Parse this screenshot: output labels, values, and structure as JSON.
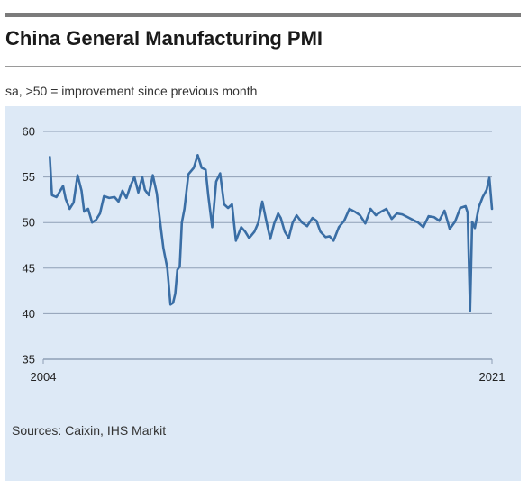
{
  "header": {
    "title": "China General Manufacturing PMI",
    "subtitle": "sa, >50 = improvement since previous month"
  },
  "footer": {
    "source": "Sources: Caixin, IHS Markit"
  },
  "colors": {
    "line": "#3a6ea5",
    "panel": "#dde9f6",
    "grid": "#8f9fb5",
    "rule": "#7b7b7b"
  },
  "chart_data": {
    "type": "line",
    "title": "China General Manufacturing PMI",
    "subtitle": "sa, >50 = improvement since previous month",
    "xlim": [
      2004,
      2021
    ],
    "ylim": [
      35,
      60
    ],
    "x_tick_labels": [
      {
        "value": 2004,
        "label": "2004"
      },
      {
        "value": 2021,
        "label": "2021"
      }
    ],
    "y_ticks": [
      60,
      55,
      50,
      45,
      40,
      35
    ],
    "grid": "horizontal",
    "series": [
      {
        "x": [
          2004.25,
          2004.33,
          2004.5,
          2004.75,
          2004.85,
          2005.0,
          2005.15,
          2005.3,
          2005.45,
          2005.55,
          2005.7,
          2005.85,
          2006.0,
          2006.15,
          2006.3,
          2006.5,
          2006.7,
          2006.85,
          2007.0,
          2007.15,
          2007.3,
          2007.45,
          2007.6,
          2007.75,
          2007.85,
          2008.0,
          2008.15,
          2008.3,
          2008.45,
          2008.55,
          2008.7,
          2008.82,
          2008.92,
          2009.0,
          2009.08,
          2009.17,
          2009.25,
          2009.35,
          2009.5,
          2009.7,
          2009.85,
          2010.0,
          2010.15,
          2010.25,
          2010.4,
          2010.55,
          2010.7,
          2010.85,
          2011.0,
          2011.15,
          2011.3,
          2011.5,
          2011.65,
          2011.8,
          2012.0,
          2012.15,
          2012.3,
          2012.45,
          2012.6,
          2012.75,
          2012.9,
          2013.0,
          2013.15,
          2013.3,
          2013.45,
          2013.6,
          2013.8,
          2014.0,
          2014.2,
          2014.35,
          2014.5,
          2014.7,
          2014.85,
          2015.0,
          2015.2,
          2015.4,
          2015.6,
          2015.8,
          2016.0,
          2016.2,
          2016.4,
          2016.6,
          2016.8,
          2017.0,
          2017.2,
          2017.4,
          2017.6,
          2017.8,
          2018.0,
          2018.2,
          2018.4,
          2018.6,
          2018.8,
          2019.0,
          2019.2,
          2019.4,
          2019.6,
          2019.8,
          2020.0,
          2020.08,
          2020.17,
          2020.25,
          2020.35,
          2020.5,
          2020.65,
          2020.8,
          2020.9,
          2021.0
        ],
        "y": [
          57.2,
          53.0,
          52.8,
          54.0,
          52.6,
          51.5,
          52.2,
          55.2,
          53.5,
          51.2,
          51.5,
          50.0,
          50.3,
          51.0,
          52.9,
          52.7,
          52.8,
          52.3,
          53.5,
          52.7,
          54.0,
          55.0,
          53.3,
          55.0,
          53.6,
          53.0,
          55.2,
          53.2,
          49.5,
          47.2,
          45.0,
          41.0,
          41.2,
          42.2,
          44.8,
          45.2,
          50.0,
          51.5,
          55.3,
          56.0,
          57.4,
          56.0,
          55.8,
          53.0,
          49.5,
          54.5,
          55.4,
          52.0,
          51.6,
          52.0,
          48.0,
          49.5,
          49.0,
          48.3,
          49.0,
          50.0,
          52.3,
          50.2,
          48.2,
          49.9,
          51.0,
          50.5,
          49.0,
          48.3,
          50.0,
          50.8,
          50.0,
          49.6,
          50.5,
          50.2,
          49.0,
          48.4,
          48.5,
          48.0,
          49.5,
          50.2,
          51.5,
          51.2,
          50.8,
          49.9,
          51.5,
          50.8,
          51.2,
          51.5,
          50.4,
          51.0,
          50.9,
          50.6,
          50.3,
          50.0,
          49.5,
          50.7,
          50.6,
          50.2,
          51.3,
          49.3,
          50.1,
          51.6,
          51.8,
          51.1,
          40.3,
          50.1,
          49.4,
          51.7,
          52.8,
          53.6,
          54.9,
          51.5
        ]
      }
    ]
  }
}
